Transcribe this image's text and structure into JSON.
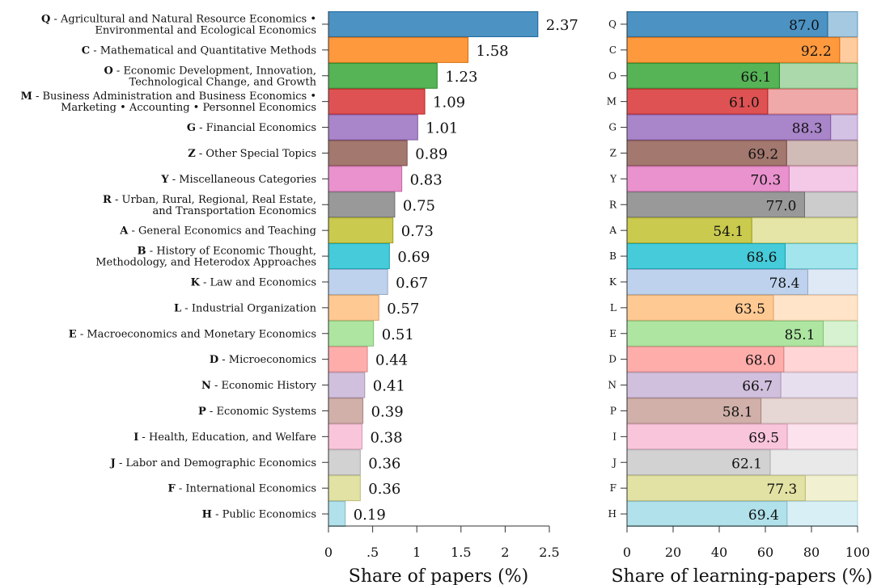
{
  "chart_data": [
    {
      "type": "bar",
      "orientation": "horizontal",
      "xlabel": "Share of papers (%)",
      "xlim": [
        0,
        2.5
      ],
      "x_ticks": [
        {
          "value": 0,
          "label": "0"
        },
        {
          "value": 0.5,
          "label": ".5"
        },
        {
          "value": 1,
          "label": "1"
        },
        {
          "value": 1.5,
          "label": "1.5"
        },
        {
          "value": 2,
          "label": "2"
        },
        {
          "value": 2.5,
          "label": "2.5"
        }
      ],
      "categories": [
        {
          "code": "Q",
          "name": [
            "Agricultural and Natural Resource Economics •",
            "Environmental and Ecological Economics"
          ],
          "value": 2.37,
          "value_label": "2.37",
          "color": "#1f77b4"
        },
        {
          "code": "C",
          "name": [
            "Mathematical and Quantitative Methods"
          ],
          "value": 1.58,
          "value_label": "1.58",
          "color": "#ff7f0e"
        },
        {
          "code": "O",
          "name": [
            "Economic Development, Innovation,",
            "Technological Change, and Growth"
          ],
          "value": 1.23,
          "value_label": "1.23",
          "color": "#2ca02c"
        },
        {
          "code": "M",
          "name": [
            "Business Administration and Business Economics •",
            "Marketing • Accounting • Personnel Economics"
          ],
          "value": 1.09,
          "value_label": "1.09",
          "color": "#d62728"
        },
        {
          "code": "G",
          "name": [
            "Financial Economics"
          ],
          "value": 1.01,
          "value_label": "1.01",
          "color": "#9467bd"
        },
        {
          "code": "Z",
          "name": [
            "Other Special Topics"
          ],
          "value": 0.89,
          "value_label": "0.89",
          "color": "#8c564b"
        },
        {
          "code": "Y",
          "name": [
            "Miscellaneous Categories"
          ],
          "value": 0.83,
          "value_label": "0.83",
          "color": "#e377c2"
        },
        {
          "code": "R",
          "name": [
            "Urban, Rural, Regional, Real Estate,",
            "and Transportation Economics"
          ],
          "value": 0.75,
          "value_label": "0.75",
          "color": "#7f7f7f"
        },
        {
          "code": "A",
          "name": [
            "General Economics and Teaching"
          ],
          "value": 0.73,
          "value_label": "0.73",
          "color": "#bcbd22"
        },
        {
          "code": "B",
          "name": [
            "History of Economic Thought,",
            "Methodology, and Heterodox Approaches"
          ],
          "value": 0.69,
          "value_label": "0.69",
          "color": "#17becf"
        },
        {
          "code": "K",
          "name": [
            "Law and Economics"
          ],
          "value": 0.67,
          "value_label": "0.67",
          "color": "#aec7e8"
        },
        {
          "code": "L",
          "name": [
            "Industrial Organization"
          ],
          "value": 0.57,
          "value_label": "0.57",
          "color": "#ffbb78"
        },
        {
          "code": "E",
          "name": [
            "Macroeconomics and Monetary Economics"
          ],
          "value": 0.51,
          "value_label": "0.51",
          "color": "#98df8a"
        },
        {
          "code": "D",
          "name": [
            "Microeconomics"
          ],
          "value": 0.44,
          "value_label": "0.44",
          "color": "#ff9896"
        },
        {
          "code": "N",
          "name": [
            "Economic History"
          ],
          "value": 0.41,
          "value_label": "0.41",
          "color": "#c5b0d5"
        },
        {
          "code": "P",
          "name": [
            "Economic Systems"
          ],
          "value": 0.39,
          "value_label": "0.39",
          "color": "#c49c94"
        },
        {
          "code": "I",
          "name": [
            "Health, Education, and Welfare"
          ],
          "value": 0.38,
          "value_label": "0.38",
          "color": "#f7b6d2"
        },
        {
          "code": "J",
          "name": [
            "Labor and Demographic Economics"
          ],
          "value": 0.36,
          "value_label": "0.36",
          "color": "#c7c7c7"
        },
        {
          "code": "F",
          "name": [
            "International Economics"
          ],
          "value": 0.36,
          "value_label": "0.36",
          "color": "#dbdb8d"
        },
        {
          "code": "H",
          "name": [
            "Public Economics"
          ],
          "value": 0.19,
          "value_label": "0.19",
          "color": "#9edae5"
        }
      ]
    },
    {
      "type": "bar",
      "orientation": "horizontal",
      "stacked_to": 100,
      "xlabel": "Share of learning-papers (%)",
      "xlim": [
        0,
        100
      ],
      "x_ticks": [
        {
          "value": 0,
          "label": "0"
        },
        {
          "value": 20,
          "label": "20"
        },
        {
          "value": 40,
          "label": "40"
        },
        {
          "value": 60,
          "label": "60"
        },
        {
          "value": 80,
          "label": "80"
        },
        {
          "value": 100,
          "label": "100"
        }
      ],
      "categories": [
        "Q",
        "C",
        "O",
        "M",
        "G",
        "Z",
        "Y",
        "R",
        "A",
        "B",
        "K",
        "L",
        "E",
        "D",
        "N",
        "P",
        "I",
        "J",
        "F",
        "H"
      ],
      "values": [
        87.0,
        92.2,
        66.1,
        61.0,
        88.3,
        69.2,
        70.3,
        77.0,
        54.1,
        68.6,
        78.4,
        63.5,
        85.1,
        68.0,
        66.7,
        58.1,
        69.5,
        62.1,
        77.3,
        69.4
      ],
      "value_labels": [
        "87.0",
        "92.2",
        "66.1",
        "61.0",
        "88.3",
        "69.2",
        "70.3",
        "77.0",
        "54.1",
        "68.6",
        "78.4",
        "63.5",
        "85.1",
        "68.0",
        "66.7",
        "58.1",
        "69.5",
        "62.1",
        "77.3",
        "69.4"
      ]
    }
  ]
}
